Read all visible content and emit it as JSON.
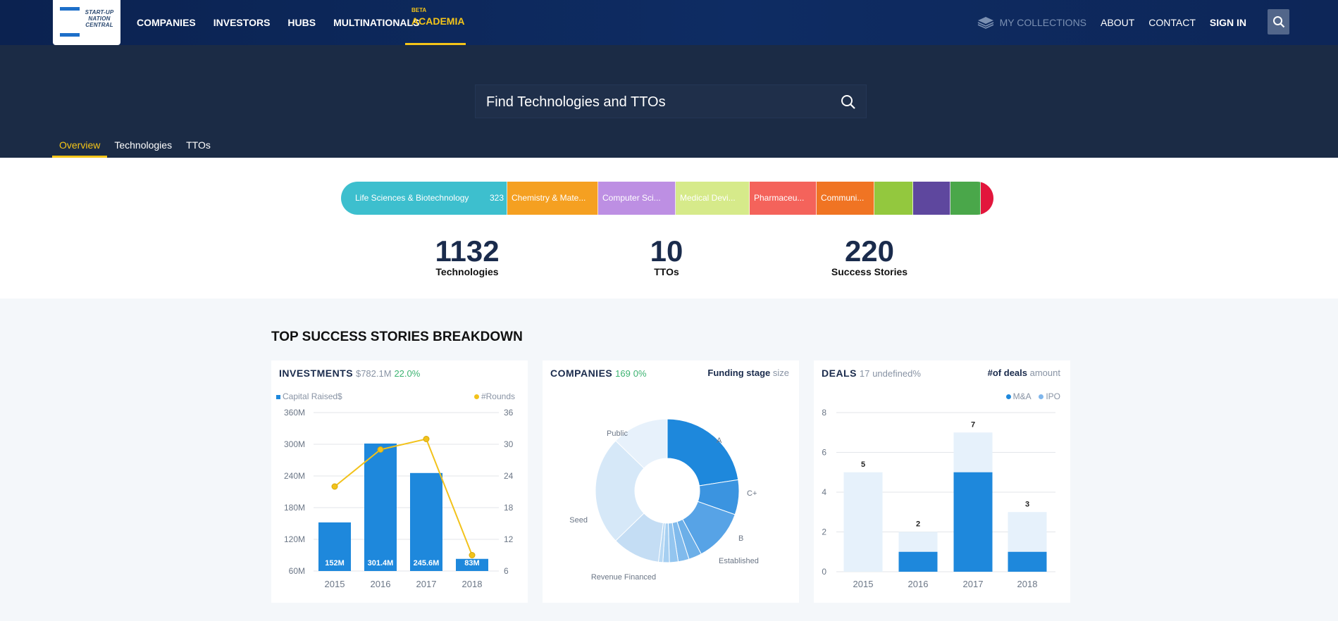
{
  "brand": {
    "logo_text": "START-UP NATION CENTRAL"
  },
  "nav": {
    "left": [
      "COMPANIES",
      "INVESTORS",
      "HUBS",
      "MULTINATIONALS"
    ],
    "academia": {
      "badge": "BETA",
      "label": "ACADEMIA"
    },
    "right": {
      "collections": "MY COLLECTIONS",
      "about": "ABOUT",
      "contact": "CONTACT",
      "signin": "SIGN IN"
    }
  },
  "hero": {
    "search_placeholder": "Find Technologies and TTOs"
  },
  "tabs": [
    "Overview",
    "Technologies",
    "TTOs"
  ],
  "fields": [
    {
      "label": "Life Sciences & Biotechnology",
      "count": "323",
      "color": "#3dbfce"
    },
    {
      "label": "Chemistry & Mate...",
      "color": "#f5a021"
    },
    {
      "label": "Computer Sci...",
      "color": "#bd8fe3"
    },
    {
      "label": "Medical Devi...",
      "color": "#d6ea8a"
    },
    {
      "label": "Pharmaceu...",
      "color": "#f4635b"
    },
    {
      "label": "Communi...",
      "color": "#f07423"
    },
    {
      "label": "",
      "color": "#93c83e"
    },
    {
      "label": "",
      "color": "#5e479e"
    },
    {
      "label": "",
      "color": "#4aa74a"
    },
    {
      "label": "",
      "color": "#e2163c"
    }
  ],
  "stats": {
    "technologies": {
      "value": "1132",
      "label": "Technologies"
    },
    "ttos": {
      "value": "10",
      "label": "TTOs"
    },
    "success": {
      "value": "220",
      "label": "Success Stories"
    }
  },
  "breakdown_title": "TOP SUCCESS STORIES BREAKDOWN",
  "investments_card": {
    "title": "INVESTMENTS",
    "amount": "$782.1M",
    "pct": "22.0%",
    "legend_left": "Capital Raised$",
    "legend_right": "#Rounds"
  },
  "companies_card": {
    "title": "COMPANIES",
    "count": "169",
    "pct": "0%",
    "toggle_on": "Funding stage",
    "toggle_off": "size"
  },
  "deals_card": {
    "title": "DEALS",
    "count": "17",
    "pct": "undefined%",
    "toggle_on": "#of deals",
    "toggle_off": "amount",
    "legend_a": "M&A",
    "legend_b": "IPO"
  },
  "colors": {
    "bar": "#1e88dc",
    "light": "#e6f1fb",
    "line": "#f2c21b",
    "nav": "#0d2658",
    "hero": "#1b2b45"
  },
  "chart_data": [
    {
      "type": "bar",
      "title": "INVESTMENTS",
      "categories": [
        "2015",
        "2016",
        "2017",
        "2018"
      ],
      "series": [
        {
          "name": "Capital Raised$",
          "values": [
            152,
            301.4,
            245.6,
            83
          ],
          "labels": [
            "152M",
            "301.4M",
            "245.6M",
            "83M"
          ]
        },
        {
          "name": "#Rounds",
          "values": [
            22,
            29,
            31,
            9
          ]
        }
      ],
      "ylim": [
        60,
        360
      ],
      "yticks": [
        "60M",
        "120M",
        "180M",
        "240M",
        "300M",
        "360M"
      ],
      "y2lim": [
        6,
        36
      ],
      "y2ticks": [
        "6",
        "12",
        "18",
        "24",
        "30",
        "36"
      ]
    },
    {
      "type": "pie",
      "title": "COMPANIES",
      "labels": [
        "A",
        "C+",
        "B",
        "",
        "",
        "",
        "",
        "Established",
        "Revenue Financed",
        "Seed",
        "Public"
      ],
      "values": [
        23,
        8,
        12,
        3,
        2.5,
        2,
        1.5,
        1,
        11,
        25,
        13
      ]
    },
    {
      "type": "bar",
      "title": "DEALS",
      "categories": [
        "2015",
        "2016",
        "2017",
        "2018"
      ],
      "series": [
        {
          "name": "M&A",
          "values": [
            0,
            1,
            5,
            1
          ]
        },
        {
          "name": "IPO",
          "values": [
            5,
            1,
            2,
            2
          ]
        }
      ],
      "totals": [
        5,
        2,
        7,
        3
      ],
      "ylim": [
        0,
        8
      ],
      "yticks": [
        "0",
        "2",
        "4",
        "6",
        "8"
      ]
    }
  ]
}
